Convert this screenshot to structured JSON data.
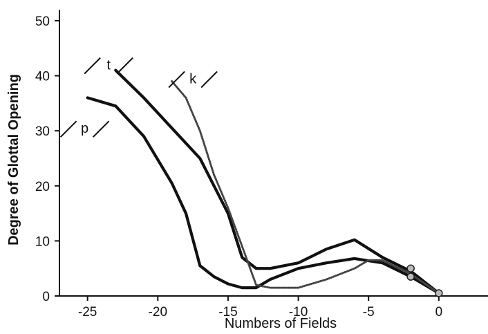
{
  "chart_data": {
    "type": "line",
    "title": "",
    "xlabel": "Numbers of Fields",
    "ylabel": "Degree of Glottal Opening",
    "xlim": [
      -27,
      3.5
    ],
    "ylim": [
      0,
      52
    ],
    "xticks": [
      -25,
      -20,
      -15,
      -10,
      -5,
      0
    ],
    "yticks": [
      0,
      10,
      20,
      30,
      40,
      50
    ],
    "grid": false,
    "series": [
      {
        "name": "t",
        "color": "#111111",
        "style": "solid-thick",
        "x": [
          -23,
          -21,
          -19,
          -17,
          -15,
          -14,
          -13,
          -12,
          -10,
          -8,
          -6,
          -4,
          -2,
          0
        ],
        "y": [
          41,
          36,
          30.5,
          25,
          15,
          7,
          5,
          5,
          6,
          8.5,
          10.2,
          7,
          4.5,
          0.5
        ]
      },
      {
        "name": "p",
        "color": "#111111",
        "style": "solid-thick",
        "x": [
          -25,
          -23,
          -21,
          -19,
          -18,
          -17,
          -16,
          -15,
          -14,
          -13,
          -12,
          -10,
          -8,
          -6,
          -4,
          -2,
          0
        ],
        "y": [
          36,
          34.5,
          29,
          20.5,
          15,
          5.5,
          3.5,
          2.2,
          1.5,
          1.5,
          3,
          5,
          6,
          6.8,
          6,
          3.5,
          0.5
        ]
      },
      {
        "name": "k",
        "color": "#444444",
        "style": "dotted-thin",
        "x": [
          -19,
          -18,
          -17,
          -16,
          -15,
          -14,
          -13,
          -12,
          -11,
          -10,
          -8,
          -6,
          -5,
          -4,
          -2,
          0
        ],
        "y": [
          39,
          36,
          30,
          22,
          16,
          9,
          2,
          1.5,
          1.5,
          1.5,
          3,
          5,
          6.5,
          6.5,
          4,
          0.5
        ]
      }
    ],
    "annotations": [
      {
        "text": "t",
        "x": -23.5,
        "y": 42
      },
      {
        "text": "k",
        "x": -17.5,
        "y": 39.5
      },
      {
        "text": "p",
        "x": -25.2,
        "y": 30.5
      }
    ]
  }
}
